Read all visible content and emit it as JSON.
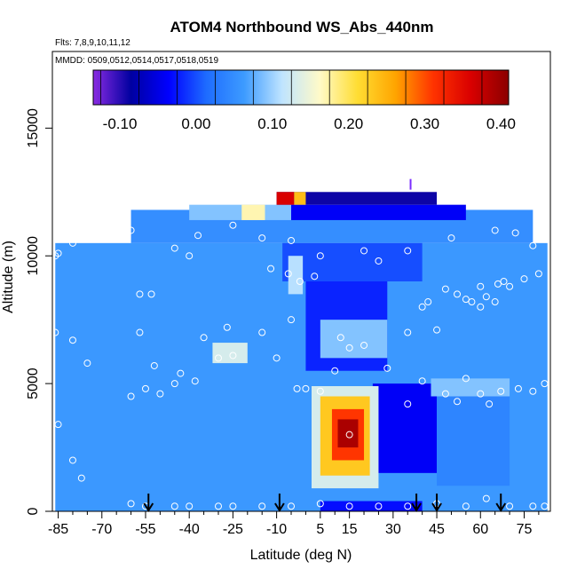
{
  "chart_data": {
    "type": "heatmap",
    "title": "ATOM4 Northbound WS_Abs_440nm",
    "subtitle_flights": "Flts: 7,8,9,10,11,12",
    "subtitle_dates": "MMDD: 0509,0512,0514,0517,0518,0519",
    "xlabel": "Latitude (deg N)",
    "ylabel": "Altitude (m)",
    "xlim": [
      -87,
      84
    ],
    "ylim": [
      0,
      18000
    ],
    "x_ticks": [
      -85,
      -70,
      -55,
      -40,
      -25,
      -10,
      5,
      15,
      30,
      45,
      60,
      75
    ],
    "x_tick_labels": [
      "-85",
      "-70",
      "-55",
      "-40",
      "-25",
      "-10",
      "5",
      "15",
      "30",
      "45",
      "60",
      "75"
    ],
    "y_ticks": [
      0,
      5000,
      10000,
      15000
    ],
    "y_tick_labels": [
      "0",
      "5000",
      "10000",
      "15000"
    ],
    "colorbar": {
      "min": -0.135,
      "max": 0.41,
      "ticks": [
        -0.1,
        0.0,
        0.1,
        0.2,
        0.3,
        0.4
      ],
      "tick_labels": [
        "-0.10",
        "0.00",
        "0.10",
        "0.20",
        "0.30",
        "0.40"
      ],
      "colors": [
        "#8a2be2",
        "#0000a0",
        "#0000ff",
        "#1e6cff",
        "#3d9bff",
        "#bfe4ff",
        "#fffac8",
        "#ffdd33",
        "#ffa500",
        "#ff3300",
        "#d90000",
        "#8b0000"
      ]
    },
    "profile_arrows_lat": [
      -54,
      -9,
      38,
      45,
      67
    ],
    "grid": false,
    "legend": "colorbar-top-inset",
    "field_regions": [
      {
        "lat": [
          -86,
          83
        ],
        "alt": [
          0,
          10500
        ],
        "value": 0.06
      },
      {
        "lat": [
          -60,
          78
        ],
        "alt": [
          10500,
          11800
        ],
        "value": 0.05
      },
      {
        "lat": [
          -40,
          -5
        ],
        "alt": [
          11400,
          12000
        ],
        "value": 0.09
      },
      {
        "lat": [
          -22,
          -14
        ],
        "alt": [
          11400,
          12000
        ],
        "value": 0.17
      },
      {
        "lat": [
          -5,
          55
        ],
        "alt": [
          11400,
          12000
        ],
        "value": -0.04
      },
      {
        "lat": [
          -10,
          45
        ],
        "alt": [
          12000,
          12500
        ],
        "value": -0.09
      },
      {
        "lat": [
          -10,
          -4
        ],
        "alt": [
          12000,
          12500
        ],
        "value": 0.36
      },
      {
        "lat": [
          -4,
          0
        ],
        "alt": [
          12000,
          12500
        ],
        "value": 0.24
      },
      {
        "lat": [
          -8,
          40
        ],
        "alt": [
          9000,
          10500
        ],
        "value": 0.0
      },
      {
        "lat": [
          -6,
          -1
        ],
        "alt": [
          8500,
          10000
        ],
        "value": 0.11
      },
      {
        "lat": [
          0,
          28
        ],
        "alt": [
          5500,
          9000
        ],
        "value": -0.02
      },
      {
        "lat": [
          5,
          28
        ],
        "alt": [
          6000,
          7500
        ],
        "value": 0.09
      },
      {
        "lat": [
          -32,
          -20
        ],
        "alt": [
          5800,
          6600
        ],
        "value": 0.13
      },
      {
        "lat": [
          23,
          45
        ],
        "alt": [
          1500,
          5000
        ],
        "value": -0.04
      },
      {
        "lat": [
          2,
          25
        ],
        "alt": [
          900,
          4900
        ],
        "value": 0.13
      },
      {
        "lat": [
          5,
          22
        ],
        "alt": [
          1400,
          4500
        ],
        "value": 0.23
      },
      {
        "lat": [
          9,
          20
        ],
        "alt": [
          2000,
          4000
        ],
        "value": 0.31
      },
      {
        "lat": [
          11,
          18
        ],
        "alt": [
          2500,
          3600
        ],
        "value": 0.39
      },
      {
        "lat": [
          5,
          40
        ],
        "alt": [
          0,
          400
        ],
        "value": -0.03
      },
      {
        "lat": [
          43,
          70
        ],
        "alt": [
          4500,
          5200
        ],
        "value": 0.09
      },
      {
        "lat": [
          45,
          70
        ],
        "alt": [
          1000,
          4500
        ],
        "value": 0.04
      }
    ],
    "sample_points": [
      [
        -86,
        10000
      ],
      [
        -85,
        10100
      ],
      [
        -80,
        10500
      ],
      [
        -75,
        10700
      ],
      [
        -72,
        11000
      ],
      [
        -70,
        11400
      ],
      [
        -68,
        11500
      ],
      [
        -60,
        11000
      ],
      [
        -45,
        10300
      ],
      [
        -37,
        10800
      ],
      [
        -25,
        11200
      ],
      [
        -15,
        10700
      ],
      [
        -5,
        10600
      ],
      [
        5,
        10000
      ],
      [
        20,
        10200
      ],
      [
        25,
        9800
      ],
      [
        35,
        10200
      ],
      [
        50,
        10700
      ],
      [
        65,
        11000
      ],
      [
        72,
        10900
      ],
      [
        78,
        10400
      ],
      [
        -57,
        8500
      ],
      [
        -53,
        8500
      ],
      [
        -40,
        10000
      ],
      [
        -12,
        9500
      ],
      [
        -6,
        9300
      ],
      [
        -2,
        9000
      ],
      [
        3,
        9200
      ],
      [
        60,
        8800
      ],
      [
        68,
        9000
      ],
      [
        75,
        9100
      ],
      [
        80,
        9300
      ],
      [
        -86,
        7000
      ],
      [
        -80,
        6700
      ],
      [
        -57,
        7000
      ],
      [
        -35,
        6800
      ],
      [
        -27,
        7200
      ],
      [
        -15,
        7000
      ],
      [
        -5,
        7500
      ],
      [
        12,
        6800
      ],
      [
        20,
        6500
      ],
      [
        35,
        7000
      ],
      [
        45,
        7100
      ],
      [
        -75,
        5800
      ],
      [
        -52,
        5700
      ],
      [
        -43,
        5400
      ],
      [
        -38,
        5100
      ],
      [
        -30,
        6000
      ],
      [
        -25,
        6100
      ],
      [
        -10,
        6000
      ],
      [
        10,
        5500
      ],
      [
        15,
        6400
      ],
      [
        28,
        5600
      ],
      [
        40,
        5100
      ],
      [
        55,
        5200
      ],
      [
        -60,
        4500
      ],
      [
        -55,
        4800
      ],
      [
        -50,
        4600
      ],
      [
        -45,
        5000
      ],
      [
        -3,
        4800
      ],
      [
        0,
        4800
      ],
      [
        5,
        4700
      ],
      [
        35,
        4200
      ],
      [
        48,
        4600
      ],
      [
        52,
        4300
      ],
      [
        60,
        4600
      ],
      [
        63,
        4200
      ],
      [
        67,
        4700
      ],
      [
        73,
        4800
      ],
      [
        78,
        4700
      ],
      [
        82,
        5000
      ],
      [
        -85,
        3400
      ],
      [
        -80,
        2000
      ],
      [
        -77,
        1300
      ],
      [
        15,
        3000
      ],
      [
        -60,
        300
      ],
      [
        -55,
        200
      ],
      [
        -45,
        200
      ],
      [
        -40,
        200
      ],
      [
        -30,
        200
      ],
      [
        -25,
        200
      ],
      [
        -15,
        200
      ],
      [
        -5,
        200
      ],
      [
        5,
        300
      ],
      [
        15,
        200
      ],
      [
        25,
        200
      ],
      [
        35,
        200
      ],
      [
        45,
        300
      ],
      [
        55,
        200
      ],
      [
        62,
        500
      ],
      [
        70,
        200
      ],
      [
        78,
        200
      ],
      [
        82,
        200
      ],
      [
        48,
        8700
      ],
      [
        52,
        8500
      ],
      [
        55,
        8300
      ],
      [
        57,
        8200
      ],
      [
        60,
        8000
      ],
      [
        62,
        8400
      ],
      [
        65,
        8200
      ],
      [
        42,
        8200
      ],
      [
        40,
        8000
      ],
      [
        66,
        8900
      ],
      [
        70,
        8800
      ]
    ],
    "marker_top": {
      "lat": 36,
      "alt": 12800
    }
  }
}
